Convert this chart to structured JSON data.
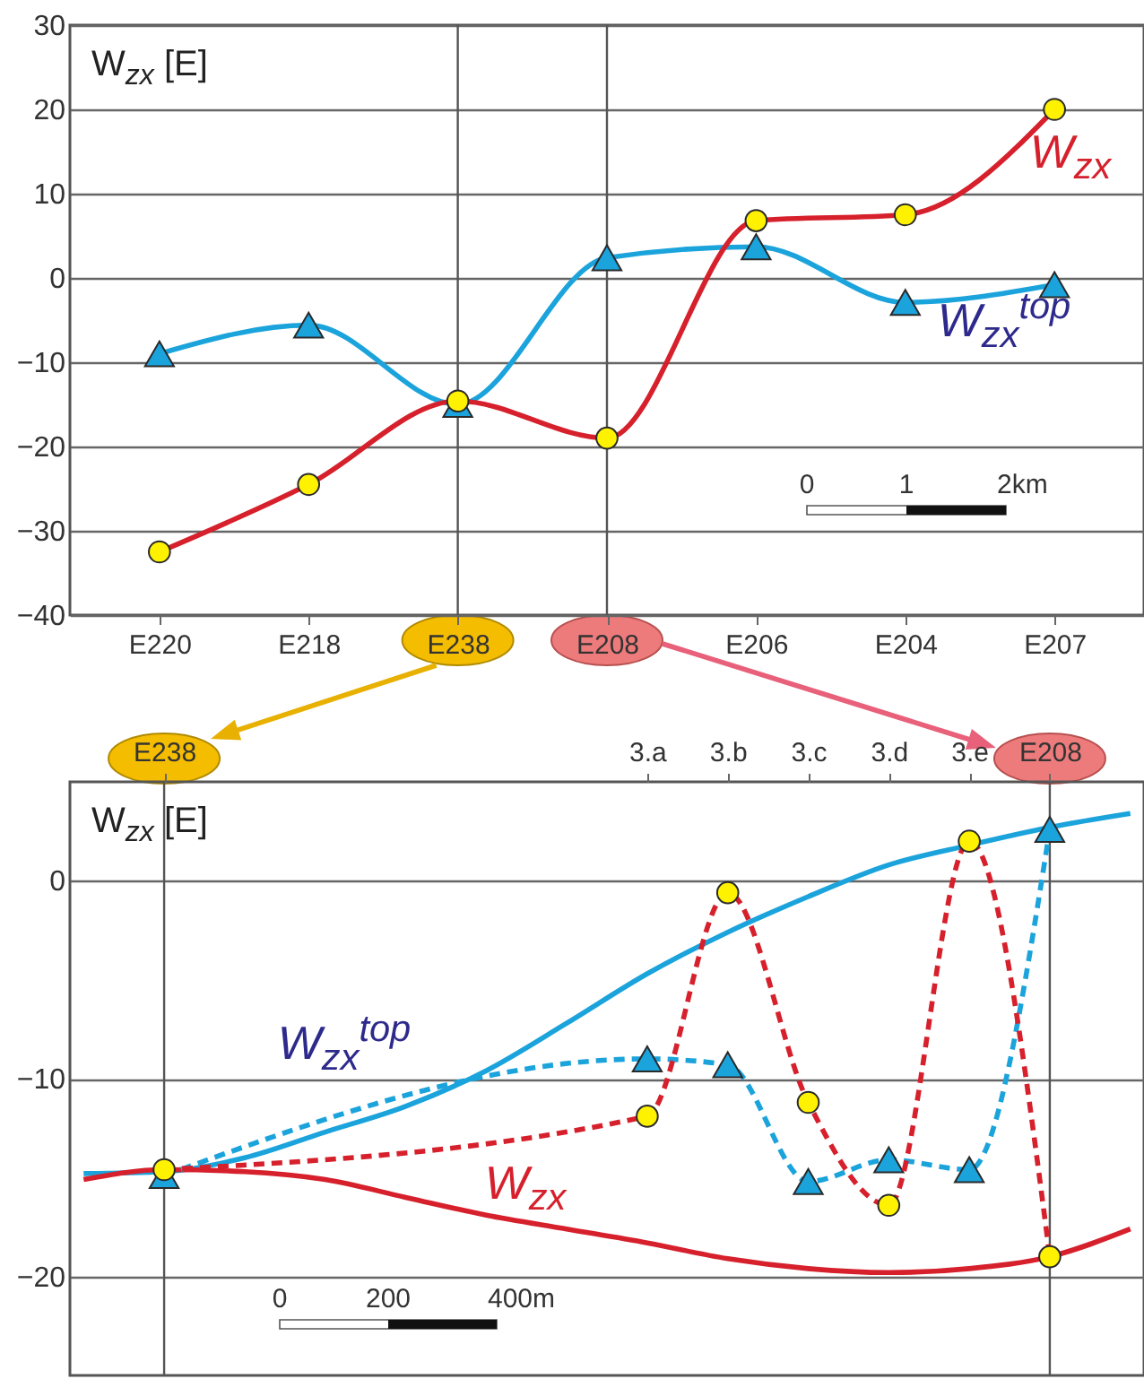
{
  "chart_data": [
    {
      "type": "line",
      "ylabel": "W$_{zx}$ [E]",
      "categories": [
        "E220",
        "E218",
        "E238",
        "E208",
        "E206",
        "E204",
        "E207"
      ],
      "ylim": [
        -40,
        30
      ],
      "yticks": [
        -40,
        -30,
        -20,
        -10,
        0,
        10,
        20,
        30
      ],
      "grid": "y",
      "series": [
        {
          "color": "#1ba3dc",
          "marker": "triangle",
          "values": [
            -9,
            -5.6,
            -15,
            2.4,
            3.7,
            -2.9,
            -0.8
          ]
        },
        {
          "color": "#d6202c",
          "marker": "circle",
          "colors": [
            "#fff200",
            "#fff200",
            "#fff200",
            "#fff200",
            "#fff200",
            "#fff200",
            "#fff200"
          ],
          "values": [
            -32.5,
            -24.5,
            -14.6,
            -19,
            6.8,
            7.5,
            20
          ]
        }
      ],
      "ref_lines": [
        {
          "axis": "x",
          "value": "E238",
          "color": "#555555"
        },
        {
          "axis": "x",
          "value": "E208",
          "color": "#555555"
        }
      ],
      "annotations": [
        "W$_{zx}$",
        "W$_{zx}$$^{top}$",
        "0",
        "1",
        "2km"
      ]
    },
    {
      "type": "line",
      "ylabel": "W$_{zx}$ [E]",
      "categories": [
        null,
        "E238",
        null,
        null,
        null,
        null,
        null,
        "3.a",
        "3.b",
        "3.c",
        "3.d",
        "3.e",
        "E208",
        null
      ],
      "ylim": [
        -25,
        5
      ],
      "yticks": [
        -20,
        -10,
        0
      ],
      "grid": "y",
      "series": [
        {
          "color": "#1ba3dc",
          "marker": "none",
          "line_style": "solid",
          "values": [
            -14.8,
            -14.7,
            -14.0,
            -12.7,
            -11.4,
            -9.6,
            -7.2,
            -4.7,
            -2.6,
            -0.8,
            0.8,
            1.8,
            2.7,
            3.4
          ]
        },
        {
          "color": "#d6202c",
          "marker": "none",
          "line_style": "solid",
          "values": [
            -15.1,
            -14.6,
            -14.7,
            -15.1,
            -16.0,
            -16.9,
            -17.6,
            -18.3,
            -19.1,
            -19.6,
            -19.8,
            -19.6,
            -19.0,
            -17.6
          ]
        },
        {
          "color": "#1ba3dc",
          "marker": "triangle",
          "line_style": "dashed",
          "x": [
            "E238",
            "3.a",
            "3.b",
            "3.c",
            "3.d",
            "3.e",
            "E208"
          ],
          "values": [
            -14.9,
            -9.0,
            -9.3,
            -15.2,
            -14.1,
            -14.6,
            2.6
          ]
        },
        {
          "color": "#d6202c",
          "marker": "circle",
          "line_style": "dashed",
          "x": [
            "E238",
            "3.a",
            "3.b",
            "3.c",
            "3.d",
            "3.e",
            "E208"
          ],
          "colors": [
            "#fff200",
            "#fff200",
            "#fff200",
            "#fff200",
            "#fff200",
            "#fff200",
            "#fff200"
          ],
          "values": [
            -14.6,
            -11.9,
            -0.6,
            -11.2,
            -16.4,
            2.0,
            -19.0
          ]
        }
      ],
      "ref_lines": [
        {
          "axis": "x",
          "value": "E238",
          "color": "#555555"
        },
        {
          "axis": "x",
          "value": "E208",
          "color": "#555555"
        }
      ],
      "annotations": [
        "W$_{zx}$$^{top}$",
        "W$_{zx}$",
        "0",
        "200",
        "400m"
      ]
    }
  ]
}
